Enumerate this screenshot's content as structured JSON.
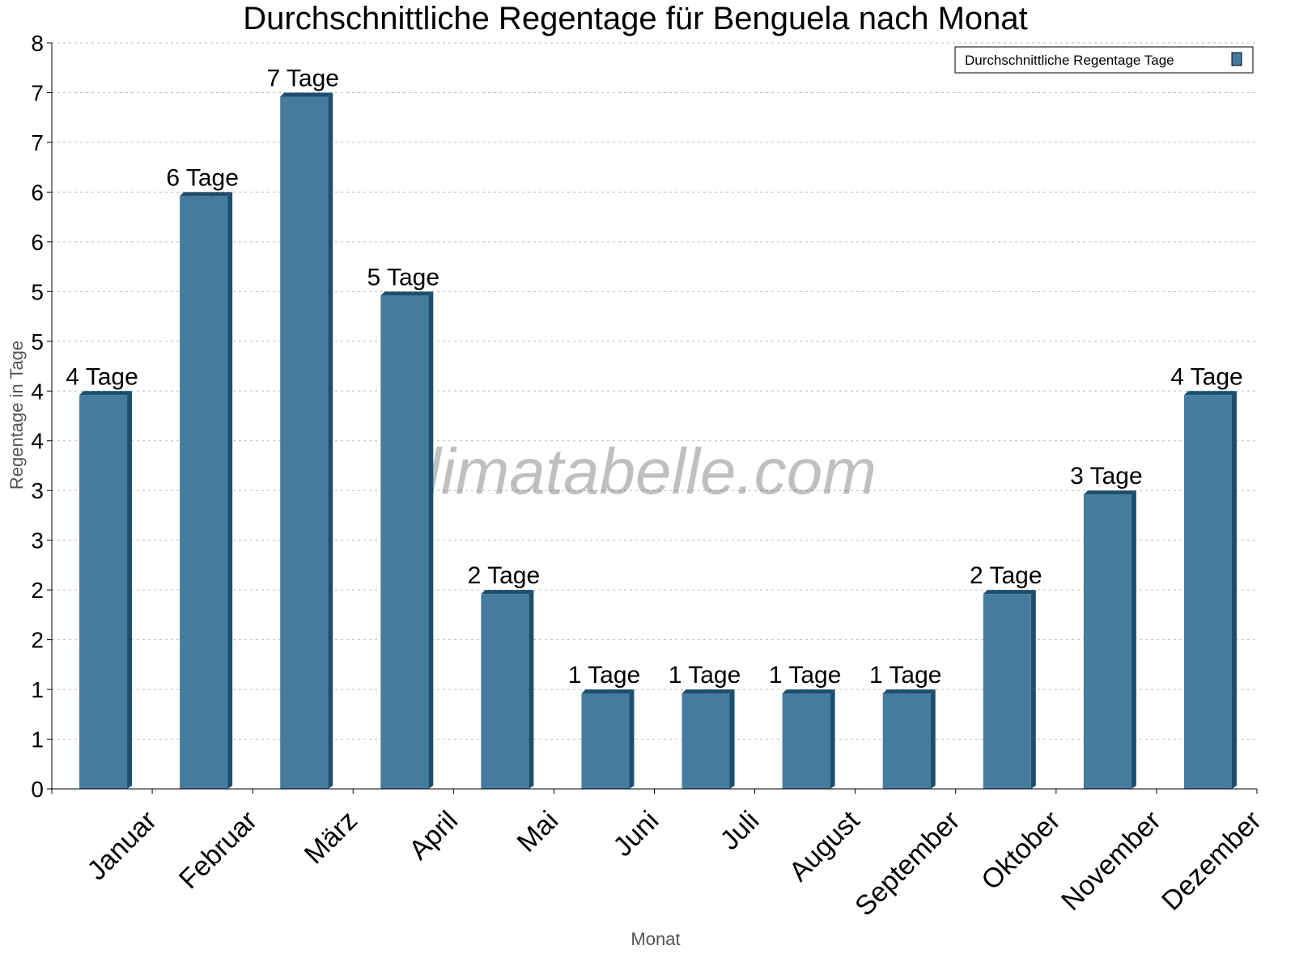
{
  "chart_data": {
    "type": "bar",
    "title": "Durchschnittliche Regentage für Benguela nach Monat",
    "xlabel": "Monat",
    "ylabel": "Regentage in Tage",
    "categories": [
      "Januar",
      "Februar",
      "März",
      "April",
      "Mai",
      "Juni",
      "Juli",
      "August",
      "September",
      "Oktober",
      "November",
      "Dezember"
    ],
    "series": [
      {
        "name": "Durchschnittliche Regentage Tage",
        "values": [
          4,
          6,
          7,
          5,
          2,
          1,
          1,
          1,
          1,
          2,
          3,
          4
        ],
        "color": "#457b9d",
        "side_color": "#1d4e6e"
      }
    ],
    "data_labels": [
      "4 Tage",
      "6 Tage",
      "7 Tage",
      "5 Tage",
      "2 Tage",
      "1 Tage",
      "1 Tage",
      "1 Tage",
      "1 Tage",
      "2 Tage",
      "3 Tage",
      "4 Tage"
    ],
    "ylim": [
      0,
      7.5
    ],
    "yticks": [
      0,
      0.5,
      1,
      1.5,
      2,
      2.5,
      3,
      3.5,
      4,
      4.5,
      5,
      5.5,
      6,
      6.5,
      7,
      7.5
    ],
    "ytick_labels": [
      "0",
      "1",
      "1",
      "2",
      "2",
      "3",
      "3",
      "4",
      "4",
      "5",
      "5",
      "6",
      "6",
      "7",
      "7",
      "8"
    ],
    "grid": true,
    "legend": "top-right",
    "watermark": "klimatabelle.com"
  }
}
